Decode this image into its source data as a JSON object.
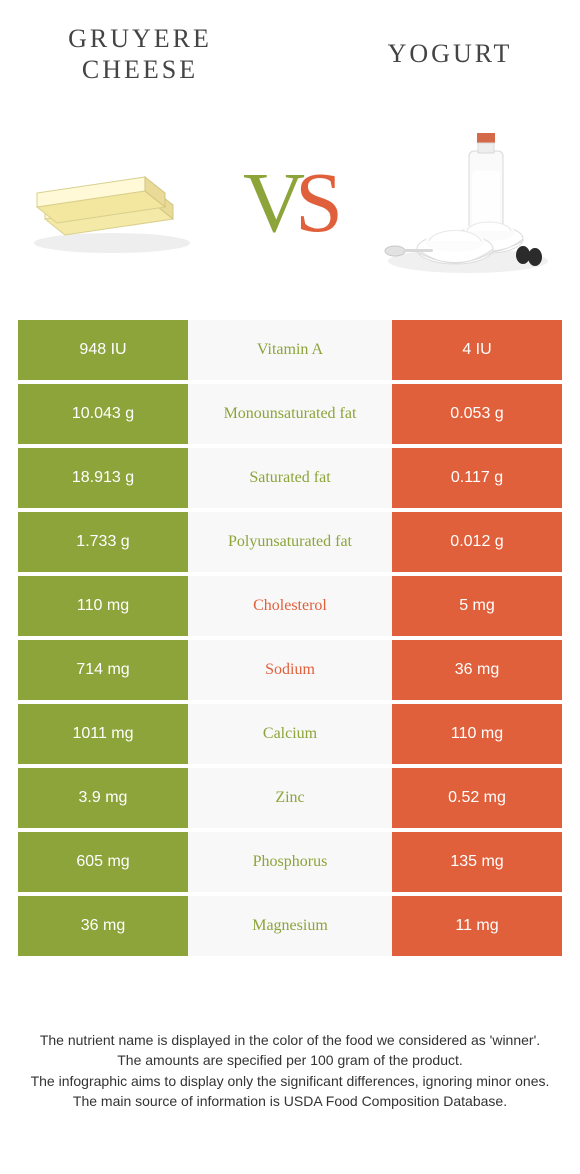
{
  "titles": {
    "left": "Gruyere cheese",
    "right": "Yogurt"
  },
  "vs": {
    "v": "V",
    "s": "S"
  },
  "colors": {
    "left": "#8ca43a",
    "right": "#e1603c",
    "mid_bg": "#f8f8f8",
    "mid_text_left": "#8ca43a",
    "mid_text_right": "#e1603c"
  },
  "rows": [
    {
      "left": "948 IU",
      "mid": "Vitamin A",
      "right": "4 IU",
      "winner": "left"
    },
    {
      "left": "10.043 g",
      "mid": "Monounsaturated fat",
      "right": "0.053 g",
      "winner": "left"
    },
    {
      "left": "18.913 g",
      "mid": "Saturated fat",
      "right": "0.117 g",
      "winner": "left"
    },
    {
      "left": "1.733 g",
      "mid": "Polyunsaturated fat",
      "right": "0.012 g",
      "winner": "left"
    },
    {
      "left": "110 mg",
      "mid": "Cholesterol",
      "right": "5 mg",
      "winner": "right"
    },
    {
      "left": "714 mg",
      "mid": "Sodium",
      "right": "36 mg",
      "winner": "right"
    },
    {
      "left": "1011 mg",
      "mid": "Calcium",
      "right": "110 mg",
      "winner": "left"
    },
    {
      "left": "3.9 mg",
      "mid": "Zinc",
      "right": "0.52 mg",
      "winner": "left"
    },
    {
      "left": "605 mg",
      "mid": "Phosphorus",
      "right": "135 mg",
      "winner": "left"
    },
    {
      "left": "36 mg",
      "mid": "Magnesium",
      "right": "11 mg",
      "winner": "left"
    }
  ],
  "footer": [
    "The nutrient name is displayed in the color of the food we considered as 'winner'.",
    "The amounts are specified per 100 gram of the product.",
    "The infographic aims to display only the significant differences, ignoring minor ones.",
    "The main source of information is USDA Food Composition Database."
  ]
}
